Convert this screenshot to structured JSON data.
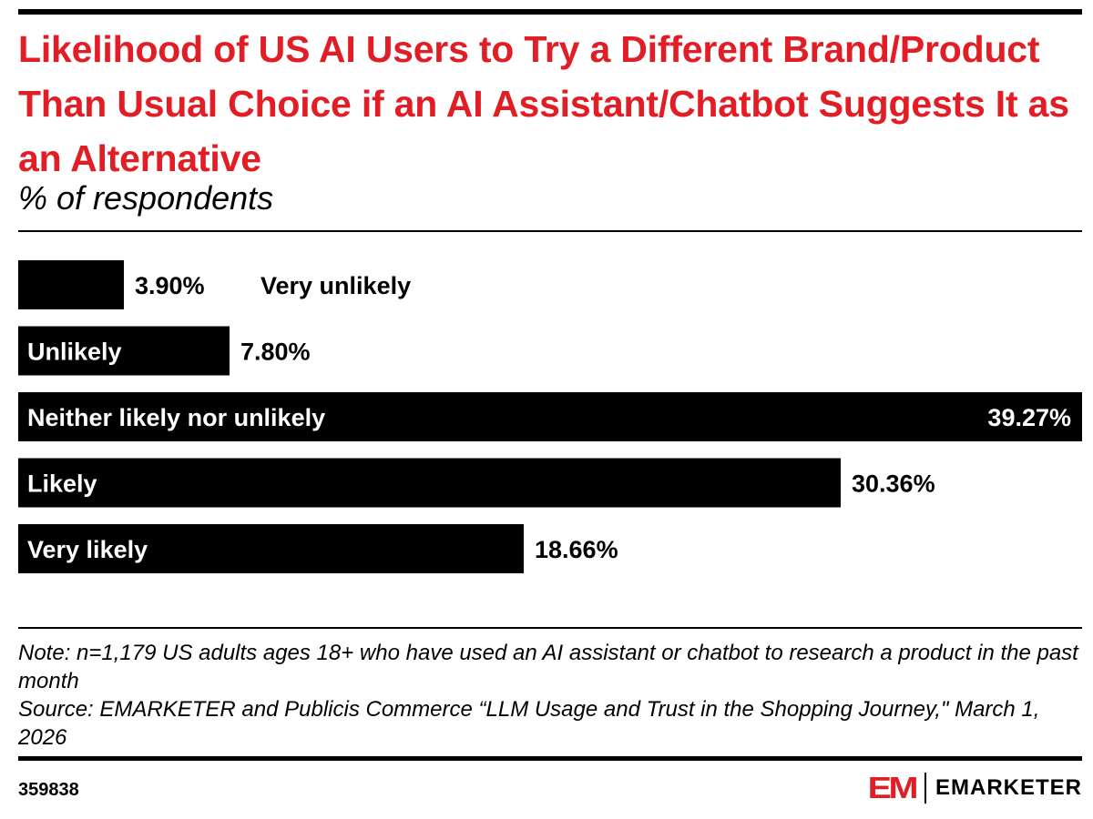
{
  "header": {
    "title": "Likelihood of US AI Users to Try a Different Brand/Product Than Usual Choice if an AI Assistant/Chatbot Suggests It as an Alternative",
    "subtitle": "% of respondents"
  },
  "chart_data": {
    "type": "bar",
    "orientation": "horizontal",
    "categories": [
      "Very unlikely",
      "Unlikely",
      "Neither likely nor unlikely",
      "Likely",
      "Very likely"
    ],
    "values": [
      3.9,
      7.8,
      39.27,
      30.36,
      18.66
    ],
    "value_labels": [
      "3.90%",
      "7.80%",
      "39.27%",
      "30.36%",
      "18.66%"
    ],
    "bar_color": "#000000",
    "grid": false,
    "legend": false
  },
  "footer": {
    "note": "Note: n=1,179 US adults ages 18+ who have used an AI assistant or chatbot to research a product in the past month",
    "source": "Source: EMARKETER and Publicis Commerce “LLM Usage and Trust in the Shopping Journey,\" March 1, 2026",
    "chart_id": "359838",
    "brand_mark": "EM",
    "brand_name": "EMARKETER"
  },
  "colors": {
    "accent": "#e11d25",
    "text": "#000000",
    "background": "#ffffff"
  }
}
